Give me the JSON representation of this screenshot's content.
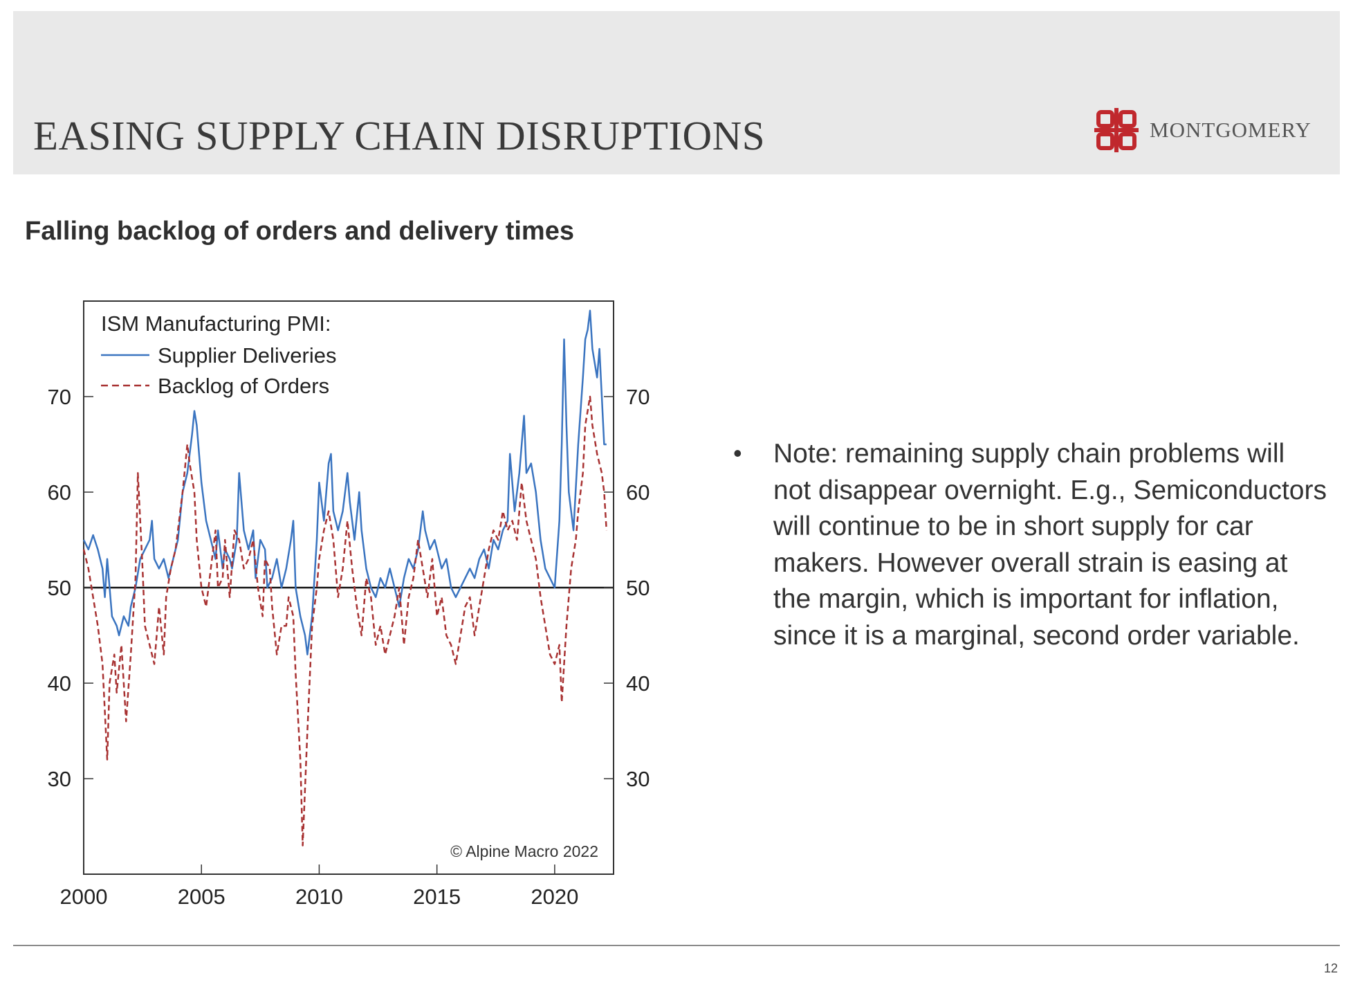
{
  "slide": {
    "title": "EASING SUPPLY CHAIN DISRUPTIONS",
    "subtitle": "Falling backlog of orders and delivery times",
    "logo_text": "MONTGOMERY",
    "logo_icon": "montgomery-logo-icon",
    "page_number": "12",
    "bullet": "Note: remaining supply chain problems will not disappear overnight. E.g., Semiconductors will continue to be in short supply for car makers. However overall strain is easing at the margin, which is important for inflation, since it is a marginal, second order variable.",
    "colors": {
      "header_band": "#e9e9e9",
      "logo_red": "#c0282d"
    }
  },
  "chart_data": {
    "type": "line",
    "legend_title": "ISM Manufacturing PMI:",
    "legend_position": "top-left",
    "copyright": "© Alpine Macro 2022",
    "xlim": [
      2000,
      2022.5
    ],
    "ylim": [
      20,
      80
    ],
    "x_ticks": [
      "2000",
      "2005",
      "2010",
      "2015",
      "2020"
    ],
    "y_ticks": [
      "30",
      "40",
      "50",
      "60",
      "70"
    ],
    "reference_line": 50,
    "grid": false,
    "series": [
      {
        "name": "Supplier Deliveries",
        "color": "#3a74c0",
        "dash": "solid",
        "points": [
          [
            2000.0,
            55
          ],
          [
            2000.2,
            54
          ],
          [
            2000.4,
            55.5
          ],
          [
            2000.6,
            54
          ],
          [
            2000.8,
            52
          ],
          [
            2000.9,
            49
          ],
          [
            2001.0,
            53
          ],
          [
            2001.2,
            47
          ],
          [
            2001.4,
            46
          ],
          [
            2001.5,
            45
          ],
          [
            2001.7,
            47
          ],
          [
            2001.9,
            46
          ],
          [
            2002.0,
            48
          ],
          [
            2002.2,
            50
          ],
          [
            2002.4,
            53
          ],
          [
            2002.6,
            54
          ],
          [
            2002.8,
            55
          ],
          [
            2002.9,
            57
          ],
          [
            2003.0,
            53
          ],
          [
            2003.2,
            52
          ],
          [
            2003.4,
            53
          ],
          [
            2003.6,
            51
          ],
          [
            2003.8,
            53
          ],
          [
            2004.0,
            55
          ],
          [
            2004.2,
            60
          ],
          [
            2004.4,
            62
          ],
          [
            2004.6,
            66
          ],
          [
            2004.7,
            68.5
          ],
          [
            2004.8,
            67
          ],
          [
            2005.0,
            61
          ],
          [
            2005.2,
            57
          ],
          [
            2005.4,
            55
          ],
          [
            2005.6,
            53
          ],
          [
            2005.7,
            56
          ],
          [
            2005.9,
            52
          ],
          [
            2006.0,
            54
          ],
          [
            2006.2,
            53
          ],
          [
            2006.3,
            52
          ],
          [
            2006.5,
            55
          ],
          [
            2006.6,
            62
          ],
          [
            2006.8,
            56
          ],
          [
            2007.0,
            54
          ],
          [
            2007.2,
            56
          ],
          [
            2007.3,
            51
          ],
          [
            2007.5,
            55
          ],
          [
            2007.7,
            54
          ],
          [
            2007.8,
            50
          ],
          [
            2008.0,
            51
          ],
          [
            2008.2,
            53
          ],
          [
            2008.4,
            50
          ],
          [
            2008.6,
            52
          ],
          [
            2008.8,
            55
          ],
          [
            2008.9,
            57
          ],
          [
            2009.0,
            50
          ],
          [
            2009.2,
            47
          ],
          [
            2009.4,
            45
          ],
          [
            2009.5,
            43
          ],
          [
            2009.7,
            47
          ],
          [
            2009.9,
            55
          ],
          [
            2010.0,
            61
          ],
          [
            2010.2,
            57
          ],
          [
            2010.4,
            63
          ],
          [
            2010.5,
            64
          ],
          [
            2010.6,
            58
          ],
          [
            2010.8,
            56
          ],
          [
            2011.0,
            58
          ],
          [
            2011.2,
            62
          ],
          [
            2011.3,
            59
          ],
          [
            2011.5,
            55
          ],
          [
            2011.7,
            60
          ],
          [
            2011.8,
            56
          ],
          [
            2012.0,
            52
          ],
          [
            2012.2,
            50
          ],
          [
            2012.4,
            49
          ],
          [
            2012.6,
            51
          ],
          [
            2012.8,
            50
          ],
          [
            2013.0,
            52
          ],
          [
            2013.2,
            50
          ],
          [
            2013.4,
            48
          ],
          [
            2013.6,
            51
          ],
          [
            2013.8,
            53
          ],
          [
            2014.0,
            52
          ],
          [
            2014.2,
            54
          ],
          [
            2014.4,
            58
          ],
          [
            2014.5,
            56
          ],
          [
            2014.7,
            54
          ],
          [
            2014.9,
            55
          ],
          [
            2015.0,
            54
          ],
          [
            2015.2,
            52
          ],
          [
            2015.4,
            53
          ],
          [
            2015.6,
            50
          ],
          [
            2015.8,
            49
          ],
          [
            2016.0,
            50
          ],
          [
            2016.2,
            51
          ],
          [
            2016.4,
            52
          ],
          [
            2016.6,
            51
          ],
          [
            2016.8,
            53
          ],
          [
            2017.0,
            54
          ],
          [
            2017.2,
            52
          ],
          [
            2017.4,
            55
          ],
          [
            2017.6,
            54
          ],
          [
            2017.8,
            56
          ],
          [
            2018.0,
            57
          ],
          [
            2018.1,
            64
          ],
          [
            2018.3,
            58
          ],
          [
            2018.5,
            62
          ],
          [
            2018.7,
            68
          ],
          [
            2018.8,
            62
          ],
          [
            2019.0,
            63
          ],
          [
            2019.2,
            60
          ],
          [
            2019.4,
            55
          ],
          [
            2019.6,
            52
          ],
          [
            2019.8,
            51
          ],
          [
            2020.0,
            50
          ],
          [
            2020.2,
            57
          ],
          [
            2020.3,
            65
          ],
          [
            2020.4,
            76
          ],
          [
            2020.5,
            67
          ],
          [
            2020.6,
            60
          ],
          [
            2020.8,
            56
          ],
          [
            2021.0,
            65
          ],
          [
            2021.2,
            72
          ],
          [
            2021.3,
            76
          ],
          [
            2021.4,
            77
          ],
          [
            2021.5,
            79
          ],
          [
            2021.6,
            75
          ],
          [
            2021.8,
            72
          ],
          [
            2021.9,
            75
          ],
          [
            2022.0,
            70
          ],
          [
            2022.1,
            65
          ],
          [
            2022.2,
            65
          ]
        ]
      },
      {
        "name": "Backlog of Orders",
        "color": "#a83232",
        "dash": "dashed",
        "points": [
          [
            2000.0,
            54
          ],
          [
            2000.2,
            52
          ],
          [
            2000.4,
            49
          ],
          [
            2000.6,
            46
          ],
          [
            2000.8,
            42
          ],
          [
            2001.0,
            32
          ],
          [
            2001.1,
            40
          ],
          [
            2001.3,
            43
          ],
          [
            2001.4,
            39
          ],
          [
            2001.6,
            44
          ],
          [
            2001.8,
            36
          ],
          [
            2002.0,
            43
          ],
          [
            2002.2,
            51
          ],
          [
            2002.3,
            62
          ],
          [
            2002.5,
            52
          ],
          [
            2002.6,
            46
          ],
          [
            2002.8,
            44
          ],
          [
            2003.0,
            42
          ],
          [
            2003.2,
            48
          ],
          [
            2003.4,
            43
          ],
          [
            2003.5,
            49
          ],
          [
            2003.7,
            52
          ],
          [
            2003.9,
            54
          ],
          [
            2004.0,
            56
          ],
          [
            2004.2,
            60
          ],
          [
            2004.4,
            65
          ],
          [
            2004.5,
            63
          ],
          [
            2004.7,
            60
          ],
          [
            2004.8,
            55
          ],
          [
            2005.0,
            50
          ],
          [
            2005.2,
            48
          ],
          [
            2005.4,
            52
          ],
          [
            2005.6,
            56
          ],
          [
            2005.7,
            50
          ],
          [
            2005.9,
            51
          ],
          [
            2006.0,
            55
          ],
          [
            2006.2,
            49
          ],
          [
            2006.4,
            56
          ],
          [
            2006.6,
            55
          ],
          [
            2006.8,
            52
          ],
          [
            2007.0,
            53
          ],
          [
            2007.2,
            55
          ],
          [
            2007.4,
            50
          ],
          [
            2007.6,
            47
          ],
          [
            2007.7,
            53
          ],
          [
            2007.9,
            52
          ],
          [
            2008.0,
            48
          ],
          [
            2008.2,
            43
          ],
          [
            2008.4,
            46
          ],
          [
            2008.6,
            46
          ],
          [
            2008.7,
            49
          ],
          [
            2008.9,
            47
          ],
          [
            2009.0,
            41
          ],
          [
            2009.2,
            32
          ],
          [
            2009.3,
            23
          ],
          [
            2009.5,
            35
          ],
          [
            2009.7,
            46
          ],
          [
            2009.9,
            50
          ],
          [
            2010.0,
            53
          ],
          [
            2010.2,
            56
          ],
          [
            2010.4,
            58
          ],
          [
            2010.6,
            55
          ],
          [
            2010.8,
            49
          ],
          [
            2011.0,
            52
          ],
          [
            2011.2,
            57
          ],
          [
            2011.4,
            52
          ],
          [
            2011.6,
            48
          ],
          [
            2011.8,
            45
          ],
          [
            2012.0,
            51
          ],
          [
            2012.2,
            49
          ],
          [
            2012.4,
            44
          ],
          [
            2012.6,
            46
          ],
          [
            2012.8,
            43
          ],
          [
            2013.0,
            45
          ],
          [
            2013.2,
            47
          ],
          [
            2013.4,
            50
          ],
          [
            2013.6,
            44
          ],
          [
            2013.8,
            49
          ],
          [
            2014.0,
            51
          ],
          [
            2014.2,
            55
          ],
          [
            2014.4,
            52
          ],
          [
            2014.6,
            49
          ],
          [
            2014.8,
            53
          ],
          [
            2015.0,
            47
          ],
          [
            2015.2,
            49
          ],
          [
            2015.4,
            45
          ],
          [
            2015.6,
            44
          ],
          [
            2015.8,
            42
          ],
          [
            2016.0,
            45
          ],
          [
            2016.2,
            48
          ],
          [
            2016.4,
            49
          ],
          [
            2016.6,
            45
          ],
          [
            2016.8,
            48
          ],
          [
            2017.0,
            51
          ],
          [
            2017.2,
            54
          ],
          [
            2017.4,
            56
          ],
          [
            2017.6,
            55
          ],
          [
            2017.8,
            58
          ],
          [
            2018.0,
            56
          ],
          [
            2018.2,
            57
          ],
          [
            2018.4,
            55
          ],
          [
            2018.6,
            61
          ],
          [
            2018.8,
            57
          ],
          [
            2019.0,
            55
          ],
          [
            2019.2,
            53
          ],
          [
            2019.4,
            49
          ],
          [
            2019.6,
            46
          ],
          [
            2019.8,
            43
          ],
          [
            2020.0,
            42
          ],
          [
            2020.2,
            44
          ],
          [
            2020.3,
            38
          ],
          [
            2020.5,
            46
          ],
          [
            2020.7,
            52
          ],
          [
            2020.9,
            55
          ],
          [
            2021.0,
            58
          ],
          [
            2021.2,
            62
          ],
          [
            2021.3,
            67
          ],
          [
            2021.5,
            70
          ],
          [
            2021.6,
            67
          ],
          [
            2021.8,
            64
          ],
          [
            2022.0,
            62
          ],
          [
            2022.1,
            60
          ],
          [
            2022.2,
            56
          ]
        ]
      }
    ]
  }
}
